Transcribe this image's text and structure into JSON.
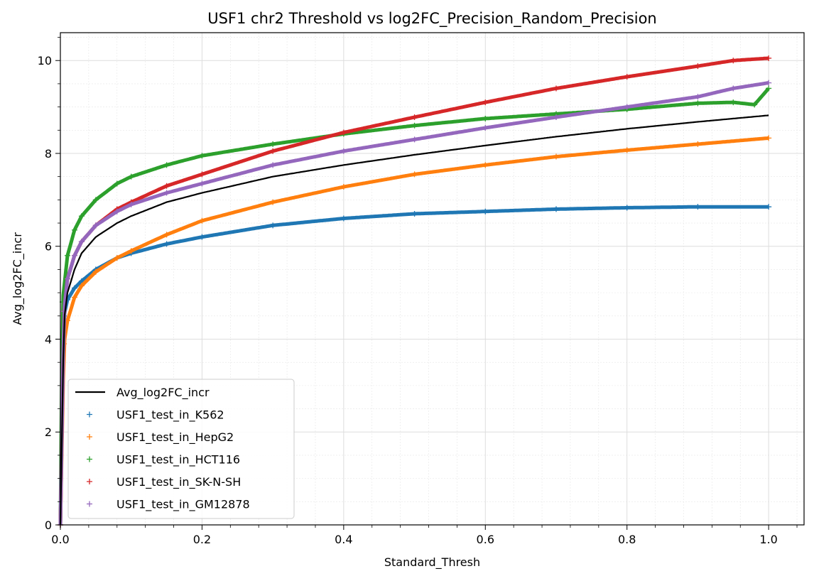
{
  "chart_data": {
    "type": "scatter",
    "title": "USF1 chr2 Threshold vs log2FC_Precision_Random_Precision",
    "xlabel": "Standard_Thresh",
    "ylabel": "Avg_log2FC_incr",
    "xlim": [
      0,
      1.05
    ],
    "ylim": [
      0,
      10.6
    ],
    "xticks": [
      0.0,
      0.2,
      0.4,
      0.6,
      0.8,
      1.0
    ],
    "xtick_labels": [
      "0.0",
      "0.2",
      "0.4",
      "0.6",
      "0.8",
      "1.0"
    ],
    "yticks": [
      0,
      2,
      4,
      6,
      8,
      10
    ],
    "ytick_labels": [
      "0",
      "2",
      "4",
      "6",
      "8",
      "10"
    ],
    "grid": true,
    "minor_grid": true,
    "legend_position": "lower-left",
    "line_series": {
      "name": "Avg_log2FC_incr",
      "color": "#000000",
      "x": [
        0.0,
        0.005,
        0.01,
        0.02,
        0.03,
        0.05,
        0.08,
        0.1,
        0.15,
        0.2,
        0.3,
        0.4,
        0.5,
        0.6,
        0.7,
        0.8,
        0.9,
        0.95,
        1.0
      ],
      "y": [
        0.0,
        4.4,
        5.0,
        5.5,
        5.85,
        6.2,
        6.5,
        6.65,
        6.95,
        7.15,
        7.5,
        7.75,
        7.97,
        8.17,
        8.36,
        8.53,
        8.68,
        8.75,
        8.82
      ]
    },
    "series": [
      {
        "name": "USF1_test_in_K562",
        "color": "#1f77b4",
        "x": [
          0.0,
          0.005,
          0.01,
          0.02,
          0.03,
          0.05,
          0.08,
          0.1,
          0.15,
          0.2,
          0.3,
          0.4,
          0.5,
          0.6,
          0.7,
          0.8,
          0.9,
          1.0
        ],
        "y": [
          0.0,
          4.5,
          4.85,
          5.1,
          5.25,
          5.5,
          5.75,
          5.85,
          6.05,
          6.2,
          6.45,
          6.6,
          6.7,
          6.75,
          6.8,
          6.83,
          6.85,
          6.85
        ]
      },
      {
        "name": "USF1_test_in_HepG2",
        "color": "#ff7f0e",
        "x": [
          0.0,
          0.005,
          0.01,
          0.02,
          0.03,
          0.05,
          0.08,
          0.1,
          0.15,
          0.2,
          0.3,
          0.4,
          0.5,
          0.6,
          0.7,
          0.8,
          0.9,
          1.0
        ],
        "y": [
          0.0,
          3.9,
          4.4,
          4.9,
          5.15,
          5.45,
          5.75,
          5.9,
          6.25,
          6.55,
          6.95,
          7.28,
          7.55,
          7.75,
          7.93,
          8.07,
          8.2,
          8.33
        ]
      },
      {
        "name": "USF1_test_in_HCT116",
        "color": "#2ca02c",
        "x": [
          0.0,
          0.003,
          0.01,
          0.02,
          0.03,
          0.05,
          0.08,
          0.1,
          0.15,
          0.2,
          0.3,
          0.4,
          0.5,
          0.6,
          0.7,
          0.8,
          0.9,
          0.95,
          0.98,
          1.0
        ],
        "y": [
          0.0,
          4.8,
          5.8,
          6.35,
          6.65,
          7.0,
          7.35,
          7.5,
          7.75,
          7.95,
          8.2,
          8.42,
          8.6,
          8.75,
          8.85,
          8.95,
          9.08,
          9.1,
          9.05,
          9.4
        ]
      },
      {
        "name": "USF1_test_in_SK-N-SH",
        "color": "#d62728",
        "x": [
          0.0,
          0.005,
          0.01,
          0.02,
          0.03,
          0.05,
          0.08,
          0.1,
          0.15,
          0.2,
          0.3,
          0.4,
          0.5,
          0.6,
          0.7,
          0.8,
          0.9,
          0.95,
          1.0
        ],
        "y": [
          0.0,
          4.6,
          5.3,
          5.8,
          6.1,
          6.45,
          6.8,
          6.95,
          7.3,
          7.55,
          8.05,
          8.45,
          8.78,
          9.1,
          9.4,
          9.65,
          9.88,
          10.0,
          10.05
        ]
      },
      {
        "name": "USF1_test_in_GM12878",
        "color": "#9467bd",
        "x": [
          0.0,
          0.005,
          0.01,
          0.02,
          0.03,
          0.05,
          0.08,
          0.1,
          0.15,
          0.2,
          0.3,
          0.4,
          0.5,
          0.6,
          0.7,
          0.8,
          0.9,
          0.95,
          1.0
        ],
        "y": [
          0.0,
          4.6,
          5.3,
          5.8,
          6.1,
          6.45,
          6.75,
          6.9,
          7.15,
          7.35,
          7.75,
          8.05,
          8.3,
          8.55,
          8.78,
          9.0,
          9.22,
          9.4,
          9.52
        ]
      }
    ]
  }
}
